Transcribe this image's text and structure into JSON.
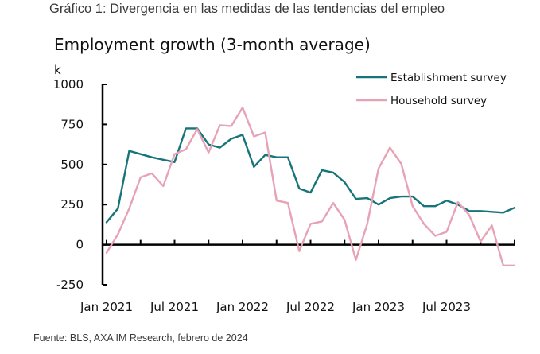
{
  "page": {
    "heading": "Gráfico 1: Divergencia en las medidas de las tendencias del empleo",
    "source": "Fuente: BLS, AXA IM Research, febrero de 2024"
  },
  "colors": {
    "establishment": "#17747A",
    "household": "#E7A2B6",
    "axis": "#000000"
  },
  "chart_data": {
    "type": "line",
    "title": "Employment growth (3-month average)",
    "ylabel": "k",
    "ylim": [
      -250,
      1000
    ],
    "yticks": [
      -250,
      0,
      250,
      500,
      750,
      1000
    ],
    "ytick_labels": [
      "-250",
      "0",
      "250",
      "500",
      "750",
      "1000"
    ],
    "xlim": [
      "2021-01",
      "2024-01"
    ],
    "xtick_labels": [
      "Jan 2021",
      "Jul 2021",
      "Jan 2022",
      "Jul 2022",
      "Jan 2023",
      "Jul 2023"
    ],
    "x": [
      "2021-01",
      "2021-02",
      "2021-03",
      "2021-04",
      "2021-05",
      "2021-06",
      "2021-07",
      "2021-08",
      "2021-09",
      "2021-10",
      "2021-11",
      "2021-12",
      "2022-01",
      "2022-02",
      "2022-03",
      "2022-04",
      "2022-05",
      "2022-06",
      "2022-07",
      "2022-08",
      "2022-09",
      "2022-10",
      "2022-11",
      "2022-12",
      "2023-01",
      "2023-02",
      "2023-03",
      "2023-04",
      "2023-05",
      "2023-06",
      "2023-07",
      "2023-08",
      "2023-09",
      "2023-10",
      "2023-11",
      "2023-12",
      "2024-01"
    ],
    "legend_position": "top-right",
    "grid": false,
    "series": [
      {
        "name": "Establishment survey",
        "color_key": "establishment",
        "values": [
          140,
          225,
          585,
          565,
          545,
          530,
          515,
          725,
          725,
          625,
          605,
          660,
          685,
          485,
          560,
          545,
          545,
          350,
          325,
          465,
          450,
          390,
          285,
          290,
          250,
          290,
          300,
          300,
          240,
          240,
          275,
          250,
          210,
          210,
          205,
          200,
          230
        ]
      },
      {
        "name": "Household survey",
        "color_key": "household",
        "values": [
          -50,
          65,
          225,
          420,
          445,
          365,
          565,
          595,
          720,
          575,
          745,
          740,
          855,
          675,
          700,
          275,
          260,
          -40,
          130,
          145,
          260,
          155,
          -95,
          130,
          475,
          605,
          505,
          240,
          130,
          55,
          80,
          265,
          185,
          20,
          120,
          -130,
          -130
        ]
      }
    ]
  }
}
